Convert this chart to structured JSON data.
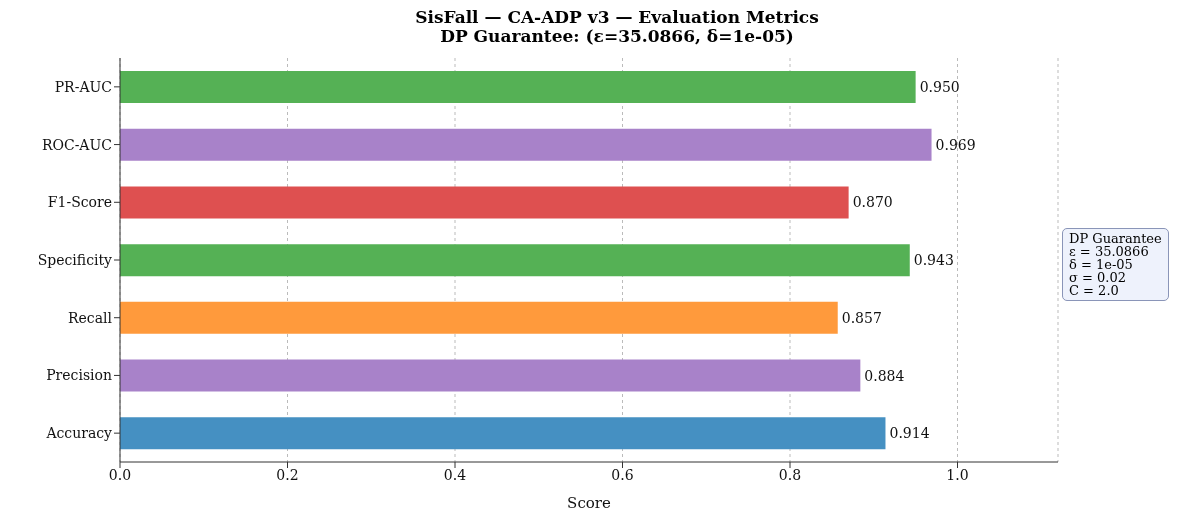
{
  "chart_data": {
    "type": "bar",
    "orientation": "horizontal",
    "title": "SisFall — CA-ADP v3 — Evaluation Metrics",
    "subtitle": "DP Guarantee: (ε=35.0866, δ=1e-05)",
    "xlabel": "Score",
    "categories": [
      "PR-AUC",
      "ROC-AUC",
      "F1-Score",
      "Specificity",
      "Recall",
      "Precision",
      "Accuracy"
    ],
    "values": [
      0.95,
      0.969,
      0.87,
      0.943,
      0.857,
      0.884,
      0.914
    ],
    "value_labels": [
      "0.950",
      "0.969",
      "0.870",
      "0.943",
      "0.857",
      "0.884",
      "0.914"
    ],
    "colors": [
      "#55b155",
      "#a882c9",
      "#de5050",
      "#55b155",
      "#ff9a3c",
      "#a882c9",
      "#4590c2"
    ],
    "xlim": [
      0,
      1.12
    ],
    "xticks": [
      {
        "value": 0,
        "label": "0.0"
      },
      {
        "value": 0.2,
        "label": "0.2"
      },
      {
        "value": 0.4,
        "label": "0.4"
      },
      {
        "value": 0.6,
        "label": "0.6"
      },
      {
        "value": 0.8,
        "label": "0.8"
      },
      {
        "value": 1.0,
        "label": "1.0"
      }
    ],
    "grid": "x",
    "annotations": [
      "DP Guarantee\nε = 35.0866\nδ = 1e-05\nσ = 0.02\nC = 2.0"
    ]
  }
}
